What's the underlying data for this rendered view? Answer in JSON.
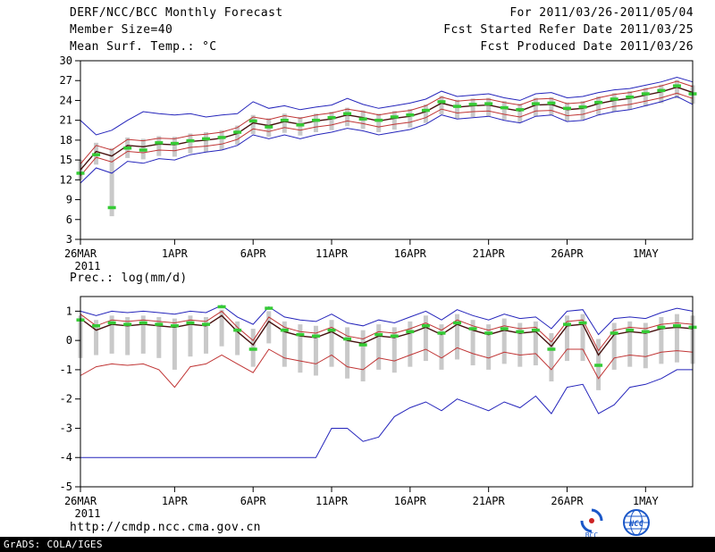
{
  "header": {
    "title": "DERF/NCC/BCC Monthly Forecast",
    "for_range": "For 2011/03/26-2011/05/04",
    "member_size": "Member Size=40",
    "fcst_started": "Fcst Started Refer Date 2011/03/25",
    "fcst_produced": "Fcst Produced Date 2011/03/26"
  },
  "footer": {
    "url": "http://cmdp.ncc.cma.gov.cn",
    "grads_credit": "GrADS: COLA/IGES",
    "logo_bcc_label": "BCC",
    "logo_ncc_label": "NCC"
  },
  "colors": {
    "frame": "#000000",
    "blue": "#2424bb",
    "red": "#c03434",
    "mean": "#46100e",
    "green": "#35cb35",
    "box": "#c9c9c9"
  },
  "chart_data": [
    {
      "name": "surface-temperature",
      "type": "line",
      "title": "Mean Surf. Temp.: °C",
      "ylabel": "°C",
      "ylim": [
        3,
        30
      ],
      "y_ticks": [
        3,
        6,
        9,
        12,
        15,
        18,
        21,
        24,
        27,
        30
      ],
      "n_days": 40,
      "x_tick_labels": [
        "26MAR",
        "1APR",
        "6APR",
        "11APR",
        "16APR",
        "21APR",
        "26APR",
        "1MAY"
      ],
      "x_tick_positions": [
        0,
        6,
        11,
        16,
        21,
        26,
        31,
        36
      ],
      "x_sub_label": "2011",
      "grid": false,
      "legend": "none",
      "boxes": {
        "color": "#c9c9c9",
        "top": [
          15.0,
          17.6,
          16.8,
          18.4,
          18.2,
          18.6,
          18.5,
          19.0,
          19.2,
          19.5,
          20.2,
          21.8,
          21.3,
          22.0,
          21.5,
          22.0,
          22.3,
          22.9,
          22.5,
          22.0,
          22.4,
          22.7,
          23.4,
          24.7,
          24.1,
          24.3,
          24.4,
          23.9,
          23.5,
          24.4,
          24.5,
          23.7,
          23.9,
          24.6,
          25.1,
          25.4,
          25.9,
          26.4,
          27.1,
          26.3
        ],
        "bottom": [
          12.0,
          14.3,
          6.5,
          15.3,
          15.1,
          15.6,
          15.5,
          16.0,
          16.2,
          16.5,
          17.3,
          18.9,
          18.5,
          19.1,
          18.7,
          19.2,
          19.5,
          20.1,
          19.7,
          19.2,
          19.6,
          19.9,
          20.6,
          21.9,
          21.3,
          21.5,
          21.6,
          21.1,
          20.7,
          21.6,
          21.7,
          20.9,
          21.1,
          21.8,
          22.3,
          22.6,
          23.1,
          23.6,
          24.3,
          23.5
        ]
      },
      "series": [
        {
          "name": "ensemble-max",
          "color": "#2424bb",
          "style": "line",
          "width": 1,
          "values": [
            21.0,
            18.8,
            19.5,
            21.0,
            22.3,
            22.0,
            21.8,
            22.0,
            21.5,
            21.8,
            22.0,
            23.8,
            22.8,
            23.2,
            22.6,
            23.0,
            23.3,
            24.3,
            23.4,
            22.8,
            23.2,
            23.6,
            24.2,
            25.4,
            24.6,
            24.8,
            25.0,
            24.4,
            24.0,
            25.0,
            25.2,
            24.4,
            24.6,
            25.2,
            25.6,
            25.8,
            26.3,
            26.8,
            27.5,
            26.8
          ]
        },
        {
          "name": "ensemble-min",
          "color": "#2424bb",
          "style": "line",
          "width": 1,
          "values": [
            11.5,
            13.8,
            13.0,
            14.8,
            14.5,
            15.2,
            15.0,
            15.8,
            16.2,
            16.5,
            17.2,
            18.8,
            18.2,
            18.8,
            18.2,
            18.8,
            19.2,
            19.8,
            19.4,
            18.8,
            19.2,
            19.6,
            20.4,
            21.8,
            21.2,
            21.4,
            21.6,
            21.0,
            20.6,
            21.6,
            21.8,
            20.8,
            21.0,
            21.8,
            22.3,
            22.6,
            23.2,
            23.8,
            24.6,
            23.4
          ]
        },
        {
          "name": "spread-upper",
          "color": "#c03434",
          "style": "line",
          "width": 1,
          "values": [
            14.4,
            17.2,
            16.5,
            18.1,
            17.9,
            18.3,
            18.2,
            18.7,
            18.9,
            19.2,
            19.9,
            21.5,
            21.1,
            21.7,
            21.3,
            21.8,
            22.1,
            22.7,
            22.3,
            21.8,
            22.2,
            22.5,
            23.2,
            24.5,
            23.9,
            24.1,
            24.2,
            23.7,
            23.3,
            24.2,
            24.3,
            23.5,
            23.7,
            24.4,
            24.9,
            25.2,
            25.7,
            26.2,
            26.9,
            26.1
          ]
        },
        {
          "name": "spread-lower",
          "color": "#c03434",
          "style": "line",
          "width": 1,
          "values": [
            12.6,
            15.4,
            14.7,
            16.3,
            16.1,
            16.5,
            16.4,
            16.9,
            17.1,
            17.4,
            18.1,
            19.7,
            19.3,
            19.9,
            19.5,
            20.0,
            20.3,
            20.9,
            20.5,
            20.0,
            20.4,
            20.7,
            21.4,
            22.7,
            22.1,
            22.3,
            22.4,
            21.9,
            21.5,
            22.4,
            22.5,
            21.7,
            21.9,
            22.6,
            23.1,
            23.4,
            23.9,
            24.4,
            25.1,
            24.3
          ]
        },
        {
          "name": "ensemble-mean",
          "color": "#46100e",
          "style": "line",
          "width": 1.4,
          "values": [
            13.5,
            16.3,
            15.6,
            17.2,
            17.0,
            17.4,
            17.3,
            17.8,
            18.0,
            18.3,
            19.0,
            20.6,
            20.2,
            20.8,
            20.4,
            20.9,
            21.2,
            21.8,
            21.4,
            20.9,
            21.3,
            21.6,
            22.3,
            23.6,
            23.0,
            23.2,
            23.3,
            22.8,
            22.4,
            23.3,
            23.4,
            22.6,
            22.8,
            23.5,
            24.0,
            24.3,
            24.8,
            25.3,
            26.0,
            25.2
          ]
        },
        {
          "name": "control-obs",
          "color": "#35cb35",
          "style": "dashes",
          "width": 3.5,
          "values": [
            13.0,
            15.8,
            7.8,
            16.8,
            16.5,
            17.6,
            17.5,
            17.9,
            18.2,
            18.4,
            19.2,
            20.9,
            20.0,
            21.0,
            20.3,
            21.0,
            21.4,
            22.0,
            21.2,
            21.0,
            21.5,
            21.8,
            22.5,
            23.8,
            23.1,
            23.4,
            23.5,
            22.9,
            22.6,
            23.5,
            23.6,
            22.8,
            23.0,
            23.7,
            24.2,
            24.5,
            25.0,
            25.5,
            26.2,
            25.0
          ]
        }
      ]
    },
    {
      "name": "precipitation",
      "type": "line",
      "title": "Prec.: log(mm/d)",
      "ylabel": "log(mm/d)",
      "ylim": [
        -5,
        1.5
      ],
      "y_ticks": [
        1,
        0,
        -1,
        -2,
        -3,
        -4,
        -5
      ],
      "n_days": 40,
      "x_tick_labels": [
        "26MAR",
        "1APR",
        "6APR",
        "11APR",
        "16APR",
        "21APR",
        "26APR",
        "1MAY"
      ],
      "x_tick_positions": [
        0,
        6,
        11,
        16,
        21,
        26,
        31,
        36
      ],
      "x_sub_label": "2011",
      "grid": false,
      "legend": "none",
      "boxes": {
        "color": "#c9c9c9",
        "top": [
          0.85,
          0.7,
          0.85,
          0.8,
          0.85,
          0.8,
          0.75,
          0.85,
          0.8,
          1.05,
          0.65,
          0.4,
          1.0,
          0.65,
          0.55,
          0.5,
          0.7,
          0.45,
          0.35,
          0.55,
          0.45,
          0.65,
          0.85,
          0.55,
          0.9,
          0.7,
          0.55,
          0.75,
          0.6,
          0.65,
          0.25,
          0.85,
          0.9,
          0.05,
          0.6,
          0.65,
          0.6,
          0.8,
          0.9,
          0.85
        ],
        "bottom": [
          -0.6,
          -0.5,
          -0.45,
          -0.5,
          -0.45,
          -0.6,
          -1.0,
          -0.55,
          -0.45,
          -0.2,
          -0.5,
          -0.9,
          -0.1,
          -0.9,
          -1.1,
          -1.2,
          -0.9,
          -1.3,
          -1.4,
          -1.0,
          -1.1,
          -0.9,
          -0.7,
          -1.0,
          -0.65,
          -0.85,
          -1.0,
          -0.8,
          -0.9,
          -0.85,
          -1.4,
          -0.7,
          -0.7,
          -1.7,
          -1.0,
          -0.9,
          -0.95,
          -0.8,
          -0.75,
          -0.8
        ]
      },
      "series": [
        {
          "name": "ensemble-max",
          "color": "#2424bb",
          "style": "line",
          "width": 1,
          "values": [
            1.0,
            0.85,
            1.0,
            0.95,
            1.0,
            0.95,
            0.9,
            1.0,
            0.95,
            1.2,
            0.8,
            0.55,
            1.15,
            0.8,
            0.7,
            0.65,
            0.9,
            0.6,
            0.5,
            0.7,
            0.6,
            0.8,
            1.0,
            0.7,
            1.05,
            0.85,
            0.7,
            0.9,
            0.75,
            0.8,
            0.4,
            1.0,
            1.05,
            0.2,
            0.75,
            0.8,
            0.75,
            0.95,
            1.1,
            1.0
          ]
        },
        {
          "name": "ensemble-min",
          "color": "#2424bb",
          "style": "line",
          "width": 1,
          "values": [
            -4,
            -4,
            -4,
            -4,
            -4,
            -4,
            -4,
            -4,
            -4,
            -4,
            -4,
            -4,
            -4,
            -4,
            -4,
            -4,
            -3.0,
            -3.0,
            -3.45,
            -3.3,
            -2.6,
            -2.3,
            -2.1,
            -2.4,
            -2.0,
            -2.2,
            -2.4,
            -2.1,
            -2.3,
            -1.9,
            -2.5,
            -1.6,
            -1.5,
            -2.5,
            -2.2,
            -1.6,
            -1.5,
            -1.3,
            -1.0,
            -1.0
          ]
        },
        {
          "name": "spread-upper",
          "color": "#c03434",
          "style": "line",
          "width": 1,
          "values": [
            0.9,
            0.5,
            0.7,
            0.65,
            0.7,
            0.65,
            0.6,
            0.7,
            0.65,
            1.0,
            0.45,
            0.0,
            0.8,
            0.45,
            0.3,
            0.25,
            0.45,
            0.15,
            0.05,
            0.3,
            0.25,
            0.4,
            0.6,
            0.35,
            0.7,
            0.5,
            0.35,
            0.5,
            0.4,
            0.45,
            -0.05,
            0.65,
            0.7,
            -0.35,
            0.35,
            0.45,
            0.4,
            0.55,
            0.6,
            0.55
          ]
        },
        {
          "name": "spread-lower",
          "color": "#c03434",
          "style": "line",
          "width": 1,
          "values": [
            -1.2,
            -0.9,
            -0.8,
            -0.85,
            -0.8,
            -1.0,
            -1.6,
            -0.9,
            -0.8,
            -0.5,
            -0.8,
            -1.1,
            -0.3,
            -0.6,
            -0.7,
            -0.8,
            -0.5,
            -0.9,
            -1.0,
            -0.6,
            -0.7,
            -0.5,
            -0.3,
            -0.6,
            -0.25,
            -0.45,
            -0.6,
            -0.4,
            -0.5,
            -0.45,
            -1.0,
            -0.3,
            -0.3,
            -1.3,
            -0.6,
            -0.5,
            -0.55,
            -0.4,
            -0.35,
            -0.4
          ]
        },
        {
          "name": "ensemble-mean",
          "color": "#46100e",
          "style": "line",
          "width": 1.4,
          "values": [
            0.75,
            0.35,
            0.55,
            0.5,
            0.55,
            0.5,
            0.45,
            0.55,
            0.5,
            0.85,
            0.3,
            -0.15,
            0.65,
            0.3,
            0.15,
            0.1,
            0.3,
            0.0,
            -0.1,
            0.15,
            0.1,
            0.25,
            0.45,
            0.2,
            0.55,
            0.35,
            0.2,
            0.35,
            0.25,
            0.3,
            -0.2,
            0.5,
            0.55,
            -0.5,
            0.2,
            0.3,
            0.25,
            0.4,
            0.45,
            0.4
          ]
        },
        {
          "name": "control-obs",
          "color": "#35cb35",
          "style": "dashes",
          "width": 3.5,
          "values": [
            0.7,
            0.5,
            0.6,
            0.55,
            0.6,
            0.55,
            0.5,
            0.6,
            0.55,
            1.15,
            0.35,
            -0.3,
            1.1,
            0.35,
            0.2,
            0.15,
            0.35,
            0.05,
            -0.15,
            0.2,
            0.15,
            0.3,
            0.5,
            0.25,
            0.6,
            0.4,
            0.25,
            0.4,
            0.3,
            0.35,
            -0.3,
            0.55,
            0.6,
            -0.85,
            0.25,
            0.35,
            0.3,
            0.45,
            0.5,
            0.45
          ]
        }
      ]
    }
  ]
}
